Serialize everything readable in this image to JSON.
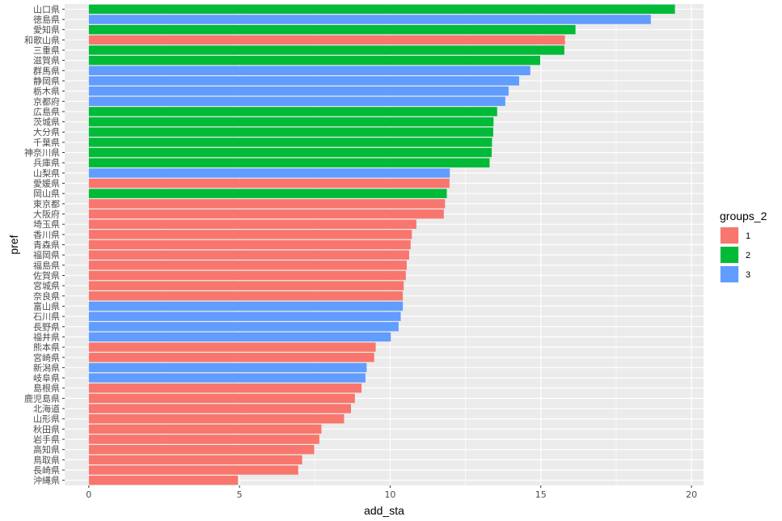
{
  "chart_data": {
    "type": "bar",
    "orientation": "horizontal",
    "xlabel": "add_sta",
    "ylabel": "pref",
    "xlim": [
      -0.8,
      20.4
    ],
    "xticks": [
      0,
      5,
      10,
      15,
      20
    ],
    "xtick_labels": [
      "0",
      "5",
      "10",
      "15",
      "20"
    ],
    "grid": true,
    "legend": {
      "title": "groups_2",
      "placement": "right",
      "entries": [
        {
          "label": "1",
          "color": "#F8766D"
        },
        {
          "label": "2",
          "color": "#00BA38"
        },
        {
          "label": "3",
          "color": "#619CFF"
        }
      ]
    },
    "bars": [
      {
        "category": "山口県",
        "value": 19.45,
        "group": "2"
      },
      {
        "category": "徳島県",
        "value": 18.65,
        "group": "3"
      },
      {
        "category": "愛知県",
        "value": 16.15,
        "group": "2"
      },
      {
        "category": "和歌山県",
        "value": 15.8,
        "group": "1"
      },
      {
        "category": "三重県",
        "value": 15.78,
        "group": "2"
      },
      {
        "category": "滋賀県",
        "value": 14.98,
        "group": "2"
      },
      {
        "category": "群馬県",
        "value": 14.65,
        "group": "3"
      },
      {
        "category": "静岡県",
        "value": 14.28,
        "group": "3"
      },
      {
        "category": "栃木県",
        "value": 13.93,
        "group": "3"
      },
      {
        "category": "京都府",
        "value": 13.82,
        "group": "3"
      },
      {
        "category": "広島県",
        "value": 13.55,
        "group": "2"
      },
      {
        "category": "茨城県",
        "value": 13.43,
        "group": "2"
      },
      {
        "category": "大分県",
        "value": 13.42,
        "group": "2"
      },
      {
        "category": "千葉県",
        "value": 13.38,
        "group": "2"
      },
      {
        "category": "神奈川県",
        "value": 13.37,
        "group": "2"
      },
      {
        "category": "兵庫県",
        "value": 13.3,
        "group": "2"
      },
      {
        "category": "山梨県",
        "value": 11.98,
        "group": "3"
      },
      {
        "category": "愛媛県",
        "value": 11.97,
        "group": "1"
      },
      {
        "category": "岡山県",
        "value": 11.88,
        "group": "2"
      },
      {
        "category": "東京都",
        "value": 11.82,
        "group": "1"
      },
      {
        "category": "大阪府",
        "value": 11.78,
        "group": "1"
      },
      {
        "category": "埼玉県",
        "value": 10.87,
        "group": "1"
      },
      {
        "category": "香川県",
        "value": 10.72,
        "group": "1"
      },
      {
        "category": "青森県",
        "value": 10.68,
        "group": "1"
      },
      {
        "category": "福岡県",
        "value": 10.63,
        "group": "1"
      },
      {
        "category": "福島県",
        "value": 10.55,
        "group": "1"
      },
      {
        "category": "佐賀県",
        "value": 10.52,
        "group": "1"
      },
      {
        "category": "宮城県",
        "value": 10.45,
        "group": "1"
      },
      {
        "category": "奈良県",
        "value": 10.42,
        "group": "1"
      },
      {
        "category": "富山県",
        "value": 10.42,
        "group": "3"
      },
      {
        "category": "石川県",
        "value": 10.35,
        "group": "3"
      },
      {
        "category": "長野県",
        "value": 10.28,
        "group": "3"
      },
      {
        "category": "福井県",
        "value": 10.02,
        "group": "3"
      },
      {
        "category": "熊本県",
        "value": 9.52,
        "group": "1"
      },
      {
        "category": "宮崎県",
        "value": 9.47,
        "group": "1"
      },
      {
        "category": "新潟県",
        "value": 9.22,
        "group": "3"
      },
      {
        "category": "岐阜県",
        "value": 9.18,
        "group": "3"
      },
      {
        "category": "島根県",
        "value": 9.05,
        "group": "1"
      },
      {
        "category": "鹿児島県",
        "value": 8.83,
        "group": "1"
      },
      {
        "category": "北海道",
        "value": 8.7,
        "group": "1"
      },
      {
        "category": "山形県",
        "value": 8.47,
        "group": "1"
      },
      {
        "category": "秋田県",
        "value": 7.72,
        "group": "1"
      },
      {
        "category": "岩手県",
        "value": 7.65,
        "group": "1"
      },
      {
        "category": "高知県",
        "value": 7.48,
        "group": "1"
      },
      {
        "category": "鳥取県",
        "value": 7.08,
        "group": "1"
      },
      {
        "category": "長崎県",
        "value": 6.95,
        "group": "1"
      },
      {
        "category": "沖縄県",
        "value": 4.95,
        "group": "1"
      }
    ]
  }
}
